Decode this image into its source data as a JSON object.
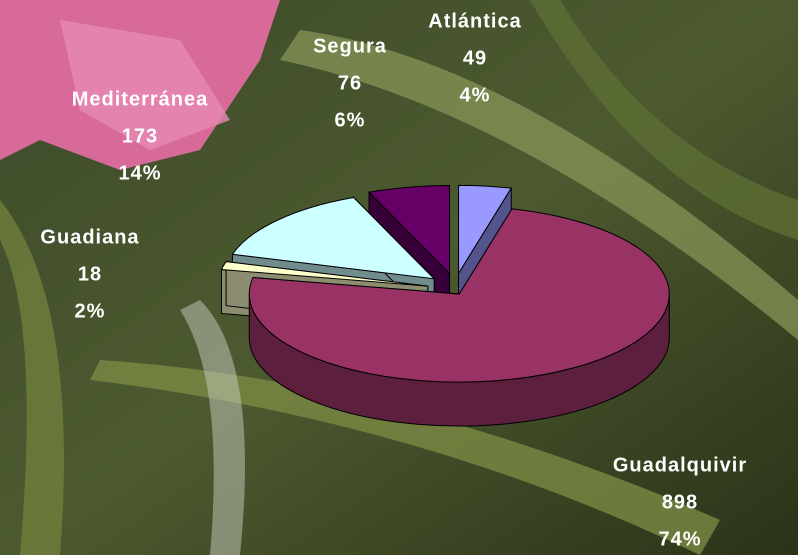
{
  "chart_data": {
    "type": "pie3d",
    "categories": [
      "Atlántica",
      "Guadalquivir",
      "Guadiana",
      "Mediterránea",
      "Segura"
    ],
    "values": [
      49,
      898,
      18,
      173,
      76
    ],
    "percent_labels": [
      "4%",
      "74%",
      "2%",
      "14%",
      "6%"
    ],
    "colors": [
      "#9999ff",
      "#993366",
      "#ffffcc",
      "#ccffff",
      "#660066"
    ]
  }
}
